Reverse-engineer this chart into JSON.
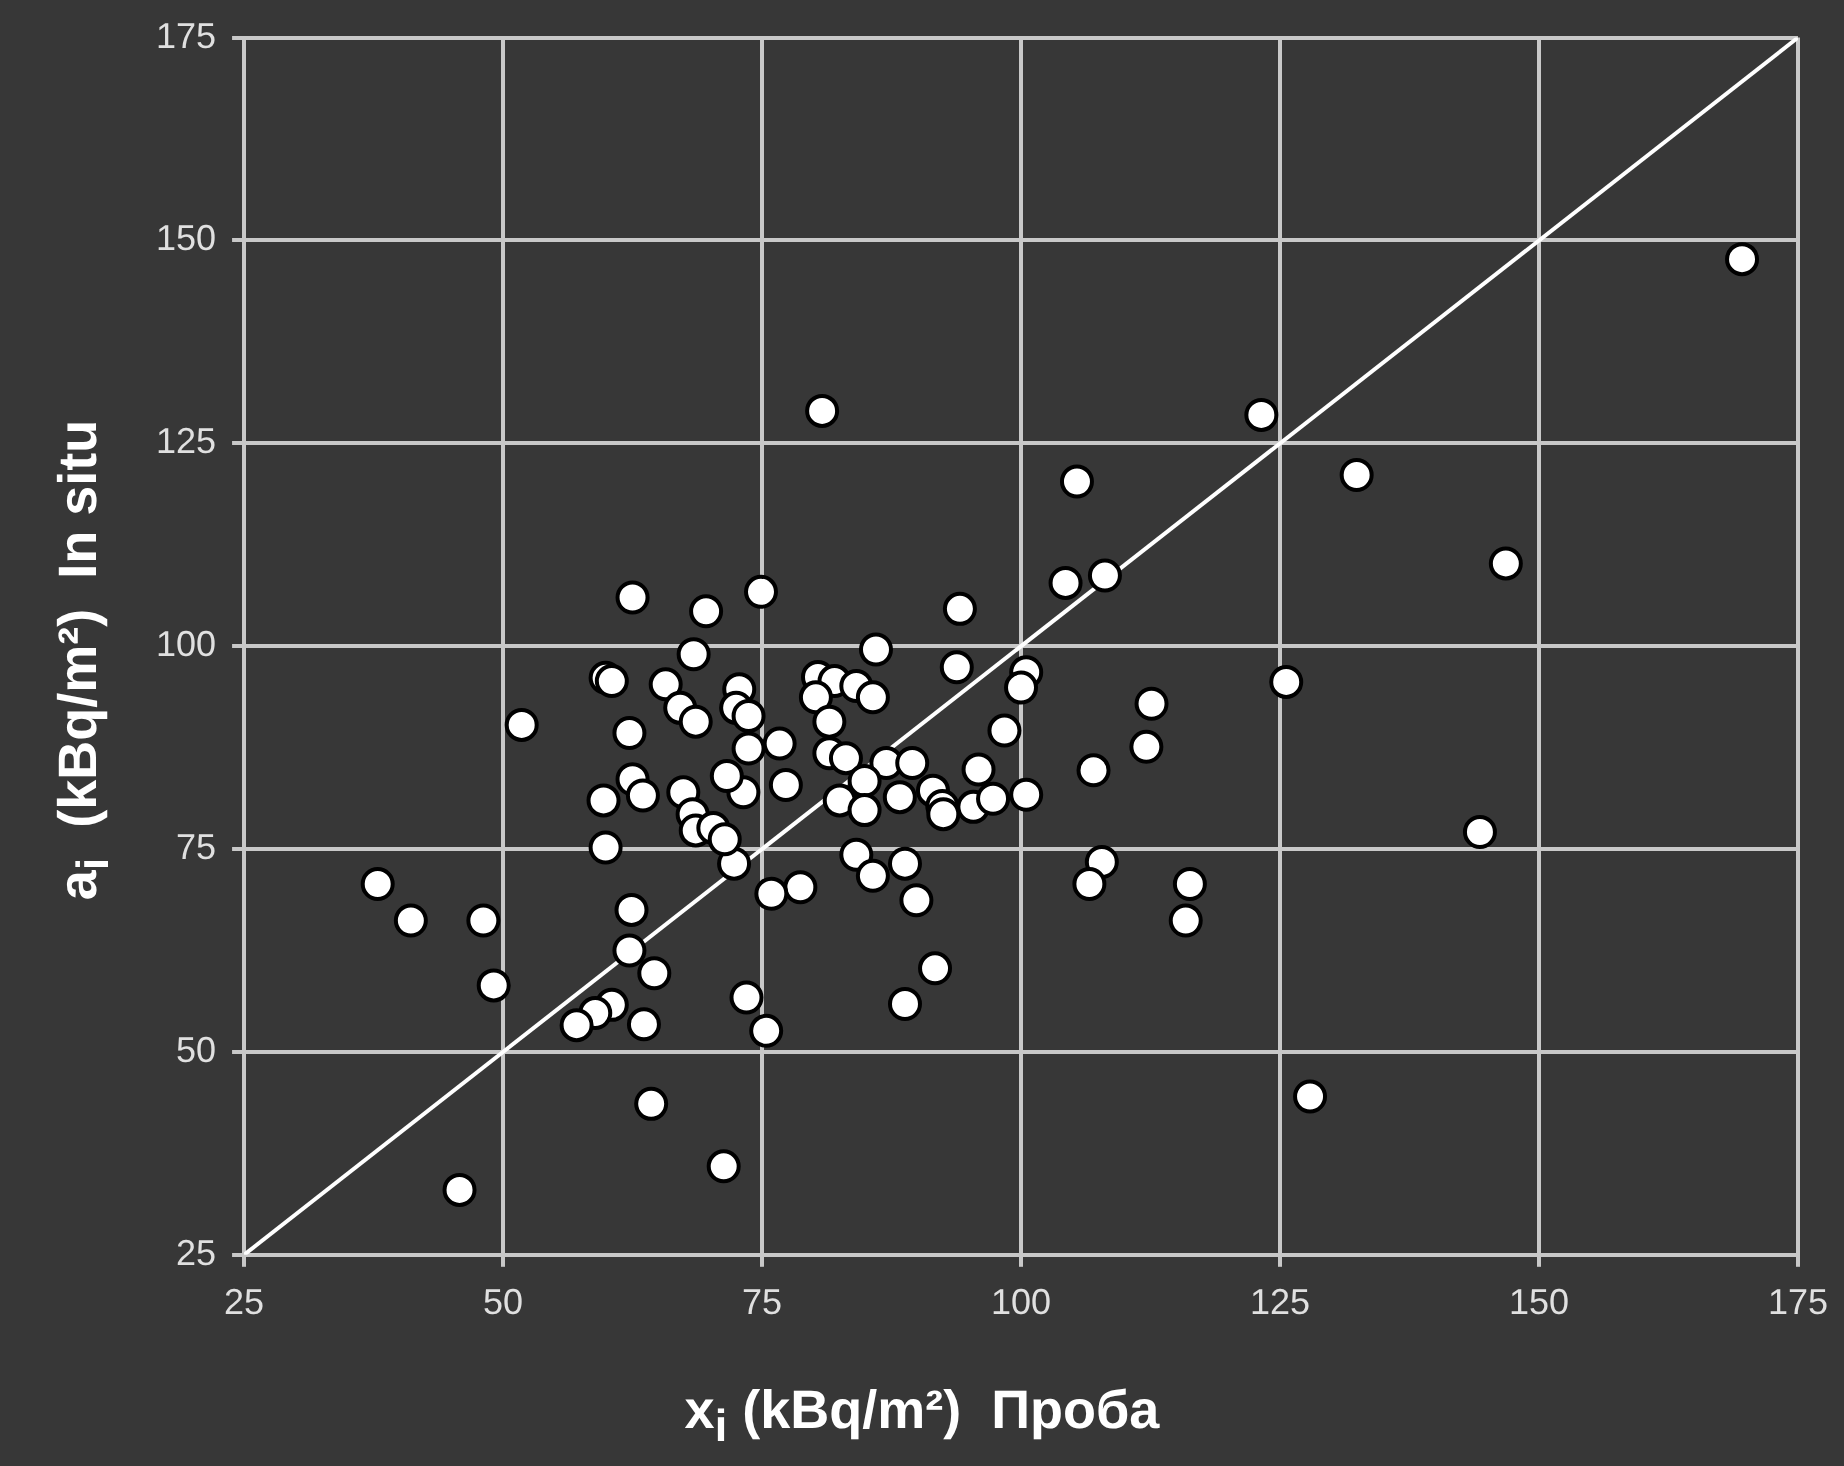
{
  "chart_data": {
    "type": "scatter",
    "xlabel": "x$_{i}$ (kBq/m²)  Проба",
    "ylabel": "a$_{i}$  (kBq/m²)  In situ",
    "xlim": [
      25,
      175
    ],
    "xticks": [
      25,
      50,
      75,
      100,
      125,
      150,
      175
    ],
    "ylim": [
      25,
      175
    ],
    "yticks": [
      25,
      50,
      75,
      100,
      125,
      150,
      175
    ],
    "grid": true,
    "marker": "circle",
    "series": [
      {
        "color": "#ffffff",
        "x": [
          169.6,
          123.2,
          132.4,
          105.4,
          80.8,
          146.8,
          104.3,
          108.1,
          74.9,
          62.5,
          69.6,
          94.1,
          86.0,
          68.4,
          59.9,
          60.5,
          65.7,
          67.1,
          68.6,
          72.8,
          72.5,
          73.7,
          80.4,
          82.0,
          84.1,
          85.7,
          80.2,
          81.5,
          76.7,
          73.7,
          73.2,
          77.3,
          81.5,
          83.1,
          87.0,
          89.5,
          84.9,
          82.5,
          84.9,
          88.3,
          91.5,
          92.4,
          92.5,
          95.4,
          95.9,
          97.3,
          100.5,
          98.4,
          93.8,
          100.5,
          100.0,
          112.6,
          112.1,
          107.0,
          125.6,
          144.3,
          107.8,
          106.6,
          116.3,
          115.9,
          127.9,
          84.1,
          85.7,
          88.8,
          89.9,
          78.7,
          75.9,
          72.3,
          91.7,
          88.8,
          73.5,
          75.4,
          51.8,
          62.2,
          62.5,
          63.5,
          59.7,
          67.4,
          71.6,
          68.3,
          68.6,
          70.3,
          71.4,
          59.9,
          37.9,
          41.1,
          48.1,
          49.1,
          62.4,
          62.2,
          64.6,
          60.5,
          58.9,
          57.1,
          63.6,
          64.3,
          71.3,
          45.8
        ],
        "values": [
          147.7,
          128.5,
          121.1,
          120.3,
          129.0,
          110.2,
          107.8,
          108.7,
          106.7,
          106.0,
          104.3,
          104.6,
          99.6,
          99.0,
          96.1,
          95.7,
          95.3,
          92.4,
          90.7,
          94.7,
          92.4,
          91.4,
          96.2,
          95.7,
          95.1,
          93.7,
          93.7,
          90.7,
          88.0,
          87.4,
          82.0,
          82.9,
          86.8,
          86.2,
          85.6,
          85.6,
          83.4,
          81.0,
          79.8,
          81.4,
          82.2,
          80.3,
          79.3,
          80.2,
          84.8,
          81.2,
          81.7,
          89.6,
          97.4,
          96.8,
          94.9,
          92.9,
          87.6,
          84.7,
          95.6,
          77.1,
          73.4,
          70.7,
          70.7,
          66.2,
          44.5,
          74.3,
          71.7,
          73.2,
          68.7,
          70.3,
          69.5,
          73.2,
          60.3,
          55.9,
          56.7,
          52.6,
          90.3,
          89.3,
          83.6,
          81.6,
          81.0,
          82.0,
          84.0,
          79.3,
          77.3,
          77.6,
          76.2,
          75.2,
          70.7,
          66.2,
          66.2,
          58.2,
          67.5,
          62.5,
          59.7,
          55.8,
          54.8,
          53.3,
          53.4,
          43.6,
          35.9,
          33.0
        ]
      },
      {
        "type": "line",
        "color": "#ffffff",
        "marker": "none",
        "x": [
          25,
          175
        ],
        "values": [
          25,
          175
        ]
      }
    ]
  }
}
